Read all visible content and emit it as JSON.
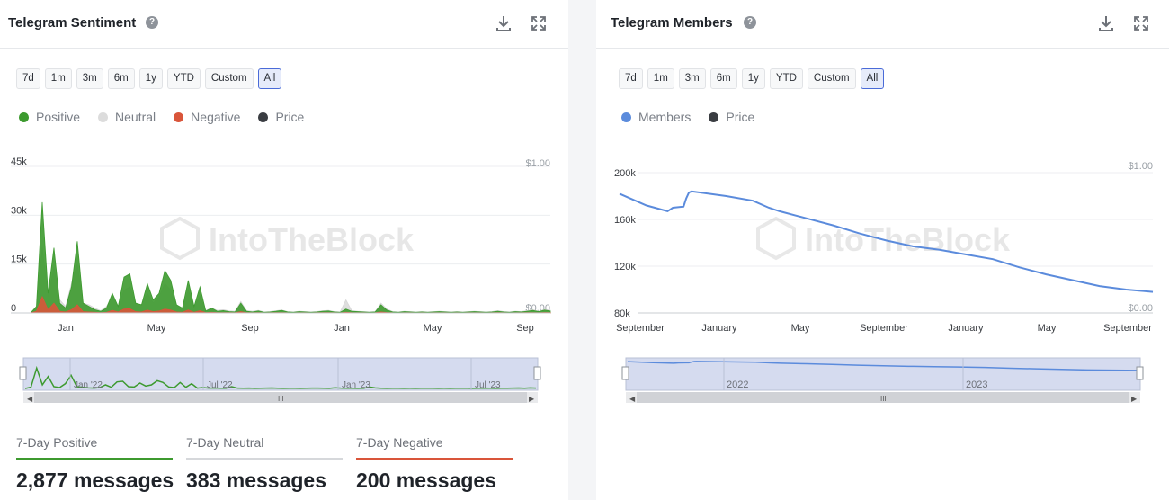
{
  "left": {
    "title": "Telegram Sentiment",
    "help_icon": "question-circle-icon",
    "download_icon": "download-icon",
    "fullscreen_icon": "expand-icon",
    "ranges": [
      "7d",
      "1m",
      "3m",
      "6m",
      "1y",
      "YTD",
      "Custom",
      "All"
    ],
    "active_range": "All",
    "legend": [
      {
        "label": "Positive",
        "color": "#3d9a2f"
      },
      {
        "label": "Neutral",
        "color": "#dcdcdc"
      },
      {
        "label": "Negative",
        "color": "#d9553a"
      },
      {
        "label": "Price",
        "color": "#3a3d42"
      }
    ],
    "stats": [
      {
        "label": "7-Day Positive",
        "value": "2,877 messages",
        "color": "#3d9a2f"
      },
      {
        "label": "7-Day Neutral",
        "value": "383 messages",
        "color": "#d6d8db"
      },
      {
        "label": "7-Day Negative",
        "value": "200 messages",
        "color": "#d9553a"
      }
    ]
  },
  "right": {
    "title": "Telegram Members",
    "help_icon": "question-circle-icon",
    "download_icon": "download-icon",
    "fullscreen_icon": "expand-icon",
    "ranges": [
      "7d",
      "1m",
      "3m",
      "6m",
      "1y",
      "YTD",
      "Custom",
      "All"
    ],
    "active_range": "All",
    "legend": [
      {
        "label": "Members",
        "color": "#5b8bdc"
      },
      {
        "label": "Price",
        "color": "#3a3d42"
      }
    ]
  },
  "watermark": "IntoTheBlock",
  "chart_data": [
    {
      "type": "area",
      "title": "Telegram Sentiment",
      "y_ticks": [
        "0",
        "15k",
        "30k",
        "45k"
      ],
      "ylim": [
        0,
        45000
      ],
      "y2_ticks": [
        "$0.00",
        "$1.00"
      ],
      "x_ticks": [
        "Jan",
        "May",
        "Sep",
        "Jan",
        "May",
        "Sep"
      ],
      "navigator_ticks": [
        "Jan '22",
        "Jul '22",
        "Jan '23",
        "Jul '23"
      ],
      "legend_position": "top-left",
      "grid": true,
      "series": [
        {
          "name": "Positive",
          "values": [
            0,
            2000,
            34000,
            6000,
            20000,
            3000,
            1500,
            8000,
            22000,
            3000,
            2000,
            1000,
            500,
            1500,
            6000,
            2000,
            11000,
            12000,
            3000,
            2500,
            9000,
            4000,
            6000,
            13000,
            10000,
            2500,
            1500,
            10000,
            2000,
            8000,
            600,
            1500,
            500,
            700,
            400,
            300,
            3000,
            500,
            300,
            600,
            200,
            300,
            500,
            800,
            300,
            200,
            400,
            300,
            200,
            300,
            500,
            600,
            300,
            200,
            1200,
            500,
            400,
            300,
            200,
            300,
            2500,
            900,
            300,
            200,
            400,
            300,
            200,
            300,
            200,
            300,
            400,
            300,
            200,
            300,
            200,
            300,
            400,
            300,
            200,
            300,
            500,
            300,
            200,
            400,
            300,
            500,
            800,
            400,
            900,
            600
          ]
        },
        {
          "name": "Neutral",
          "values": [
            0,
            1500,
            20000,
            5000,
            14000,
            4000,
            2000,
            9000,
            15000,
            3000,
            2500,
            1500,
            700,
            2000,
            5000,
            2000,
            7000,
            8000,
            3000,
            2500,
            6000,
            3000,
            5000,
            9000,
            7000,
            2500,
            1500,
            7000,
            2000,
            5000,
            800,
            1500,
            800,
            1000,
            600,
            500,
            3500,
            700,
            500,
            800,
            300,
            400,
            700,
            900,
            400,
            300,
            500,
            400,
            300,
            400,
            700,
            800,
            400,
            300,
            4000,
            700,
            500,
            400,
            300,
            400,
            3000,
            1200,
            400,
            300,
            500,
            400,
            300,
            400,
            300,
            400,
            500,
            400,
            300,
            400,
            300,
            400,
            500,
            400,
            300,
            400,
            700,
            400,
            300,
            500,
            400,
            700,
            1000,
            500,
            1100,
            800
          ]
        },
        {
          "name": "Negative",
          "values": [
            0,
            500,
            5000,
            1000,
            3000,
            500,
            300,
            1000,
            2500,
            400,
            300,
            200,
            100,
            200,
            800,
            300,
            1200,
            1300,
            400,
            300,
            900,
            400,
            600,
            1200,
            900,
            300,
            200,
            900,
            200,
            700,
            100,
            200,
            100,
            100,
            80,
            60,
            400,
            80,
            60,
            80,
            40,
            50,
            80,
            100,
            50,
            40,
            60,
            50,
            40,
            50,
            80,
            90,
            50,
            40,
            200,
            80,
            60,
            50,
            40,
            50,
            300,
            120,
            50,
            40,
            60,
            50,
            40,
            50,
            40,
            50,
            60,
            50,
            40,
            50,
            40,
            50,
            60,
            50,
            40,
            50,
            80,
            50,
            40,
            60,
            50,
            80,
            100,
            60,
            120,
            90
          ]
        }
      ]
    },
    {
      "type": "line",
      "title": "Telegram Members",
      "y_ticks": [
        "80k",
        "120k",
        "160k",
        "200k"
      ],
      "ylim": [
        80000,
        200000
      ],
      "y2_ticks": [
        "$0.00",
        "$1.00"
      ],
      "x_ticks": [
        "September",
        "January",
        "May",
        "September",
        "January",
        "May",
        "September"
      ],
      "navigator_ticks": [
        "2022",
        "2023"
      ],
      "legend_position": "top-left",
      "grid": true,
      "series": [
        {
          "name": "Members",
          "x": [
            0,
            0.05,
            0.09,
            0.1,
            0.12,
            0.125,
            0.13,
            0.135,
            0.2,
            0.25,
            0.28,
            0.3,
            0.35,
            0.4,
            0.45,
            0.5,
            0.55,
            0.6,
            0.65,
            0.7,
            0.75,
            0.8,
            0.85,
            0.9,
            0.95,
            1.0
          ],
          "values": [
            182000,
            172000,
            167000,
            170000,
            171000,
            178000,
            183000,
            184000,
            180000,
            176000,
            170000,
            167000,
            161000,
            155000,
            148000,
            142000,
            137000,
            134000,
            130000,
            126000,
            119000,
            113000,
            108000,
            103000,
            100000,
            98000
          ]
        }
      ]
    }
  ]
}
